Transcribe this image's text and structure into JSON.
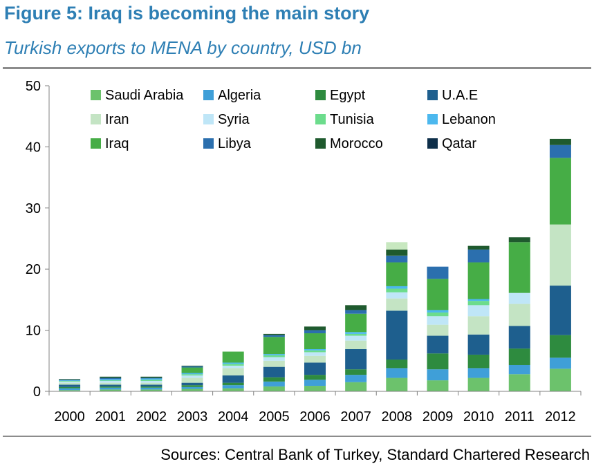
{
  "header": {
    "title": "Figure 5: Iraq is becoming the main story",
    "subtitle": "Turkish exports to MENA by country, USD bn"
  },
  "footer": {
    "source": "Sources: Central Bank of Turkey, Standard Chartered Research"
  },
  "chart_data": {
    "type": "bar",
    "stacked": true,
    "title": "Figure 5: Iraq is becoming the main story",
    "subtitle": "Turkish exports to MENA by country, USD bn",
    "xlabel": "",
    "ylabel": "",
    "ylim": [
      0,
      50
    ],
    "yticks": [
      0,
      10,
      20,
      30,
      40,
      50
    ],
    "grid": false,
    "legend_position": "top (inside plot, 4 columns)",
    "categories": [
      "2000",
      "2001",
      "2002",
      "2003",
      "2004",
      "2005",
      "2006",
      "2007",
      "2008",
      "2009",
      "2010",
      "2011",
      "2012"
    ],
    "series": [
      {
        "name": "Saudi Arabia",
        "color": "#6cc26c",
        "values": [
          0.2,
          0.3,
          0.3,
          0.4,
          0.5,
          0.8,
          0.9,
          1.5,
          2.2,
          1.8,
          2.2,
          2.8,
          3.7
        ]
      },
      {
        "name": "Algeria",
        "color": "#3f9fd8",
        "values": [
          0.3,
          0.3,
          0.3,
          0.3,
          0.5,
          0.8,
          1.0,
          1.2,
          1.6,
          1.8,
          1.6,
          1.5,
          1.8
        ]
      },
      {
        "name": "Egypt",
        "color": "#2e8b3f",
        "values": [
          0.2,
          0.2,
          0.2,
          0.3,
          0.4,
          0.7,
          0.8,
          0.9,
          1.4,
          2.6,
          2.2,
          2.7,
          3.7
        ]
      },
      {
        "name": "U.A.E",
        "color": "#1e5f8e",
        "values": [
          0.4,
          0.3,
          0.3,
          0.4,
          1.2,
          1.7,
          2.0,
          3.3,
          8.0,
          2.9,
          3.3,
          3.7,
          8.1
        ]
      },
      {
        "name": "Iran",
        "color": "#c4e4c4",
        "values": [
          0.3,
          0.3,
          0.3,
          0.8,
          1.2,
          1.0,
          1.1,
          1.4,
          2.0,
          1.8,
          3.0,
          3.6,
          10.0
        ]
      },
      {
        "name": "Syria",
        "color": "#bfe6f7",
        "values": [
          0.2,
          0.3,
          0.3,
          0.4,
          0.4,
          0.6,
          0.6,
          0.8,
          1.0,
          1.4,
          1.8,
          1.8,
          0.0
        ]
      },
      {
        "name": "Tunisia",
        "color": "#6cdc8c",
        "values": [
          0.1,
          0.1,
          0.2,
          0.2,
          0.3,
          0.3,
          0.3,
          0.3,
          0.6,
          0.6,
          0.7,
          0.0,
          0.0
        ]
      },
      {
        "name": "Lebanon",
        "color": "#4cb8ee",
        "values": [
          0.1,
          0.2,
          0.2,
          0.2,
          0.2,
          0.2,
          0.2,
          0.3,
          0.4,
          0.4,
          0.3,
          0.0,
          0.0
        ]
      },
      {
        "name": "Iraq",
        "color": "#46ad46",
        "values": [
          0.0,
          0.0,
          0.0,
          0.9,
          1.8,
          2.8,
          2.6,
          3.0,
          3.9,
          5.1,
          6.0,
          8.3,
          10.9
        ]
      },
      {
        "name": "Libya",
        "color": "#2b6fae",
        "values": [
          0.1,
          0.2,
          0.1,
          0.2,
          0.0,
          0.3,
          0.5,
          0.6,
          1.1,
          2.0,
          2.1,
          0.0,
          2.1
        ]
      },
      {
        "name": "Morocco",
        "color": "#1f5a2e",
        "values": [
          0.1,
          0.2,
          0.2,
          0.1,
          0.0,
          0.2,
          0.6,
          0.8,
          1.0,
          0.0,
          0.6,
          0.8,
          1.0
        ]
      },
      {
        "name": "Qatar",
        "color": "#0e2f4a",
        "values": [
          0.0,
          0.0,
          0.0,
          0.0,
          0.0,
          0.0,
          0.0,
          0.0,
          0.0,
          0.0,
          0.0,
          0.0,
          0.0
        ]
      }
    ],
    "stack_remainder_color": "#c8e8c0",
    "stack_remainder": [
      0.0,
      0.0,
      0.0,
      0.0,
      0.0,
      0.0,
      0.0,
      0.0,
      1.2,
      0.0,
      0.0,
      0.0,
      0.0
    ]
  }
}
